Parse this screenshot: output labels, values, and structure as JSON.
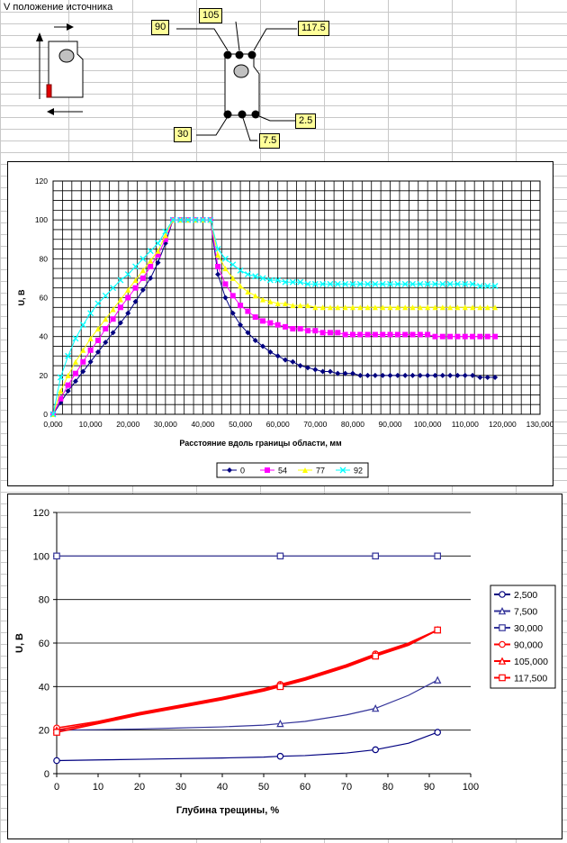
{
  "sheet": {
    "title": "V положение источника"
  },
  "diagram": {
    "labels": [
      "90",
      "105",
      "117.5",
      "30",
      "7.5",
      "2.5"
    ]
  },
  "chart_data": [
    {
      "type": "line",
      "xlabel": "Расстояние вдоль границы области, мм",
      "ylabel": "U, В",
      "xlim": [
        0,
        130000
      ],
      "ylim": [
        0,
        120
      ],
      "xticks": [
        "0,000",
        "10,000",
        "20,000",
        "30,000",
        "40,000",
        "50,000",
        "60,000",
        "70,000",
        "80,000",
        "90,000",
        "100,000",
        "110,000",
        "120,000",
        "130,000"
      ],
      "yticks": [
        "0",
        "20",
        "40",
        "60",
        "80",
        "100",
        "120"
      ],
      "grid": true,
      "legend": "bottom",
      "series": [
        {
          "name": "0",
          "color": "#000080",
          "marker": "diamond",
          "x": [
            0,
            2000,
            4000,
            6000,
            8000,
            10000,
            12000,
            14000,
            16000,
            18000,
            20000,
            22000,
            24000,
            26000,
            28000,
            30000,
            32000,
            34000,
            36000,
            38000,
            40000,
            42000,
            44000,
            46000,
            48000,
            50000,
            52000,
            54000,
            56000,
            58000,
            60000,
            62000,
            64000,
            66000,
            68000,
            70000,
            72000,
            74000,
            76000,
            78000,
            80000,
            82000,
            84000,
            86000,
            88000,
            90000,
            92000,
            94000,
            96000,
            98000,
            100000,
            102000,
            104000,
            106000,
            108000,
            110000,
            112000,
            114000,
            116000,
            118000
          ],
          "y": [
            0,
            6,
            12,
            17,
            22,
            27,
            32,
            37,
            42,
            47,
            52,
            58,
            64,
            70,
            78,
            88,
            100,
            100,
            100,
            100,
            100,
            100,
            72,
            60,
            52,
            46,
            42,
            38,
            35,
            32,
            30,
            28,
            27,
            25,
            24,
            23,
            22,
            22,
            21,
            21,
            21,
            20,
            20,
            20,
            20,
            20,
            20,
            20,
            20,
            20,
            20,
            20,
            20,
            20,
            20,
            20,
            20,
            19,
            19,
            19
          ]
        },
        {
          "name": "54",
          "color": "#ff00ff",
          "marker": "square",
          "x": [
            0,
            2000,
            4000,
            6000,
            8000,
            10000,
            12000,
            14000,
            16000,
            18000,
            20000,
            22000,
            24000,
            26000,
            28000,
            30000,
            32000,
            34000,
            36000,
            38000,
            40000,
            42000,
            44000,
            46000,
            48000,
            50000,
            52000,
            54000,
            56000,
            58000,
            60000,
            62000,
            64000,
            66000,
            68000,
            70000,
            72000,
            74000,
            76000,
            78000,
            80000,
            82000,
            84000,
            86000,
            88000,
            90000,
            92000,
            94000,
            96000,
            98000,
            100000,
            102000,
            104000,
            106000,
            108000,
            110000,
            112000,
            114000,
            116000,
            118000
          ],
          "y": [
            0,
            8,
            15,
            21,
            27,
            33,
            38,
            44,
            49,
            55,
            60,
            65,
            70,
            76,
            82,
            90,
            100,
            100,
            100,
            100,
            100,
            100,
            76,
            67,
            61,
            56,
            53,
            50,
            48,
            47,
            46,
            45,
            44,
            44,
            43,
            43,
            42,
            42,
            42,
            41,
            41,
            41,
            41,
            41,
            41,
            41,
            41,
            41,
            41,
            41,
            41,
            40,
            40,
            40,
            40,
            40,
            40,
            40,
            40,
            40
          ]
        },
        {
          "name": "77",
          "color": "#ffff00",
          "marker": "triangle",
          "x": [
            0,
            2000,
            4000,
            6000,
            8000,
            10000,
            12000,
            14000,
            16000,
            18000,
            20000,
            22000,
            24000,
            26000,
            28000,
            30000,
            32000,
            34000,
            36000,
            38000,
            40000,
            42000,
            44000,
            46000,
            48000,
            50000,
            52000,
            54000,
            56000,
            58000,
            60000,
            62000,
            64000,
            66000,
            68000,
            70000,
            72000,
            74000,
            76000,
            78000,
            80000,
            82000,
            84000,
            86000,
            88000,
            90000,
            92000,
            94000,
            96000,
            98000,
            100000,
            102000,
            104000,
            106000,
            108000,
            110000,
            112000,
            114000,
            116000,
            118000
          ],
          "y": [
            0,
            12,
            20,
            27,
            33,
            39,
            44,
            49,
            54,
            59,
            64,
            69,
            74,
            79,
            84,
            92,
            100,
            100,
            100,
            100,
            100,
            100,
            82,
            75,
            70,
            66,
            63,
            61,
            59,
            58,
            57,
            57,
            56,
            56,
            56,
            55,
            55,
            55,
            55,
            55,
            55,
            55,
            55,
            55,
            55,
            55,
            55,
            55,
            55,
            55,
            55,
            55,
            55,
            55,
            55,
            55,
            55,
            55,
            55,
            55
          ]
        },
        {
          "name": "92",
          "color": "#00ffff",
          "marker": "x",
          "x": [
            0,
            2000,
            4000,
            6000,
            8000,
            10000,
            12000,
            14000,
            16000,
            18000,
            20000,
            22000,
            24000,
            26000,
            28000,
            30000,
            32000,
            34000,
            36000,
            38000,
            40000,
            42000,
            44000,
            46000,
            48000,
            50000,
            52000,
            54000,
            56000,
            58000,
            60000,
            62000,
            64000,
            66000,
            68000,
            70000,
            72000,
            74000,
            76000,
            78000,
            80000,
            82000,
            84000,
            86000,
            88000,
            90000,
            92000,
            94000,
            96000,
            98000,
            100000,
            102000,
            104000,
            106000,
            108000,
            110000,
            112000,
            114000,
            116000,
            118000
          ],
          "y": [
            0,
            19,
            30,
            39,
            46,
            52,
            57,
            61,
            65,
            69,
            72,
            76,
            80,
            84,
            88,
            94,
            100,
            100,
            100,
            100,
            100,
            100,
            85,
            80,
            77,
            74,
            72,
            71,
            70,
            69,
            69,
            68,
            68,
            68,
            67,
            67,
            67,
            67,
            67,
            67,
            67,
            67,
            67,
            67,
            67,
            67,
            67,
            67,
            67,
            67,
            67,
            67,
            67,
            67,
            67,
            67,
            67,
            66,
            66,
            66
          ]
        }
      ]
    },
    {
      "type": "line",
      "xlabel": "Глубина трещины, %",
      "ylabel": "U, В",
      "xlim": [
        0,
        100
      ],
      "ylim": [
        0,
        120
      ],
      "xticks": [
        "0",
        "10",
        "20",
        "30",
        "40",
        "50",
        "60",
        "70",
        "80",
        "90",
        "100"
      ],
      "yticks": [
        "0",
        "20",
        "40",
        "60",
        "80",
        "100",
        "120"
      ],
      "grid": true,
      "legend": "right",
      "series": [
        {
          "name": "2,500",
          "color": "#000080",
          "marker": "circle",
          "x": [
            0,
            10,
            20,
            30,
            40,
            50,
            54,
            60,
            70,
            77,
            85,
            92
          ],
          "y": [
            6,
            6.3,
            6.6,
            6.9,
            7.2,
            7.6,
            8,
            8.3,
            9.5,
            11,
            14,
            19
          ]
        },
        {
          "name": "7,500",
          "color": "#333399",
          "marker": "triangle",
          "x": [
            0,
            10,
            20,
            30,
            40,
            50,
            54,
            60,
            70,
            77,
            85,
            92
          ],
          "y": [
            20,
            20.2,
            20.5,
            21,
            21.5,
            22.3,
            23,
            24,
            27,
            30,
            36,
            43
          ]
        },
        {
          "name": "30,000",
          "color": "#333399",
          "marker": "square",
          "x": [
            0,
            54,
            77,
            92
          ],
          "y": [
            100,
            100,
            100,
            100
          ]
        },
        {
          "name": "90,000",
          "color": "#ff0000",
          "marker": "circle",
          "x": [
            0,
            10,
            20,
            30,
            40,
            50,
            54,
            60,
            70,
            77,
            85,
            92
          ],
          "y": [
            21,
            24,
            28,
            31.5,
            35,
            39,
            41,
            44,
            50,
            55,
            60,
            66
          ]
        },
        {
          "name": "105,000",
          "color": "#ff0000",
          "marker": "triangle",
          "x": [
            0,
            10,
            20,
            30,
            40,
            50,
            54,
            60,
            70,
            77,
            85,
            92
          ],
          "y": [
            20,
            23.5,
            27.5,
            31,
            34.5,
            38.5,
            40.5,
            43.5,
            49.5,
            54.5,
            59.5,
            66
          ]
        },
        {
          "name": "117,500",
          "color": "#ff0000",
          "marker": "square",
          "x": [
            0,
            10,
            20,
            30,
            40,
            50,
            54,
            60,
            70,
            77,
            85,
            92
          ],
          "y": [
            19,
            23,
            27,
            30.5,
            34,
            38,
            40,
            43,
            49,
            54,
            59,
            66
          ]
        }
      ]
    }
  ]
}
